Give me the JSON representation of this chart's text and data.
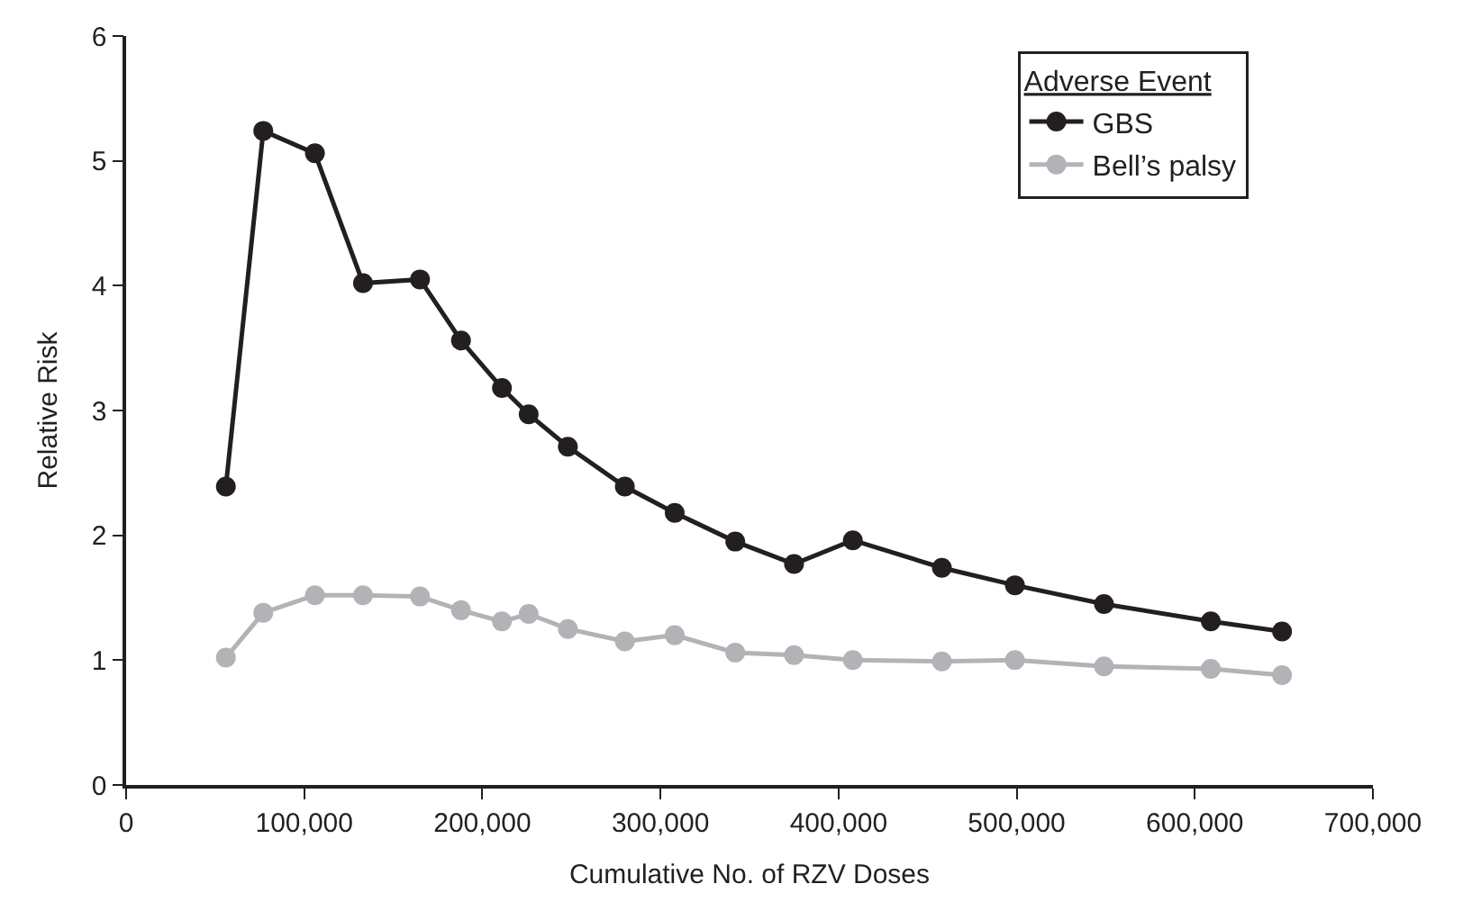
{
  "chart_data": {
    "type": "line",
    "xlabel": "Cumulative No. of RZV Doses",
    "ylabel": "Relative Risk",
    "legend_title": "Adverse Event",
    "legend": "top right",
    "marker": "circle",
    "line_style": "solid",
    "x": [
      56000,
      77000,
      106000,
      133000,
      165000,
      188000,
      211000,
      226000,
      248000,
      280000,
      308000,
      342000,
      375000,
      408000,
      458000,
      499000,
      549000,
      609000,
      649000
    ],
    "series": [
      {
        "name": "GBS",
        "color": "#231f20",
        "values": [
          2.39,
          5.24,
          5.06,
          4.02,
          4.05,
          3.56,
          3.18,
          2.97,
          2.71,
          2.39,
          2.18,
          1.95,
          1.77,
          1.96,
          1.74,
          1.6,
          1.45,
          1.31,
          1.23
        ]
      },
      {
        "name": "Bell’s palsy",
        "color": "#b1b3b6",
        "values": [
          1.02,
          1.38,
          1.52,
          1.52,
          1.51,
          1.4,
          1.31,
          1.37,
          1.25,
          1.15,
          1.2,
          1.06,
          1.04,
          1.0,
          0.99,
          1.0,
          0.95,
          0.93,
          0.88
        ]
      }
    ],
    "xlim": [
      0,
      700000
    ],
    "xticks": [
      {
        "value": 0,
        "label": "0"
      },
      {
        "value": 100000,
        "label": "100,000"
      },
      {
        "value": 200000,
        "label": "200,000"
      },
      {
        "value": 300000,
        "label": "300,000"
      },
      {
        "value": 400000,
        "label": "400,000"
      },
      {
        "value": 500000,
        "label": "500,000"
      },
      {
        "value": 600000,
        "label": "600,000"
      },
      {
        "value": 700000,
        "label": "700,000"
      }
    ],
    "ylim": [
      0,
      6
    ],
    "yticks": [
      0,
      1,
      2,
      3,
      4,
      5,
      6
    ]
  }
}
